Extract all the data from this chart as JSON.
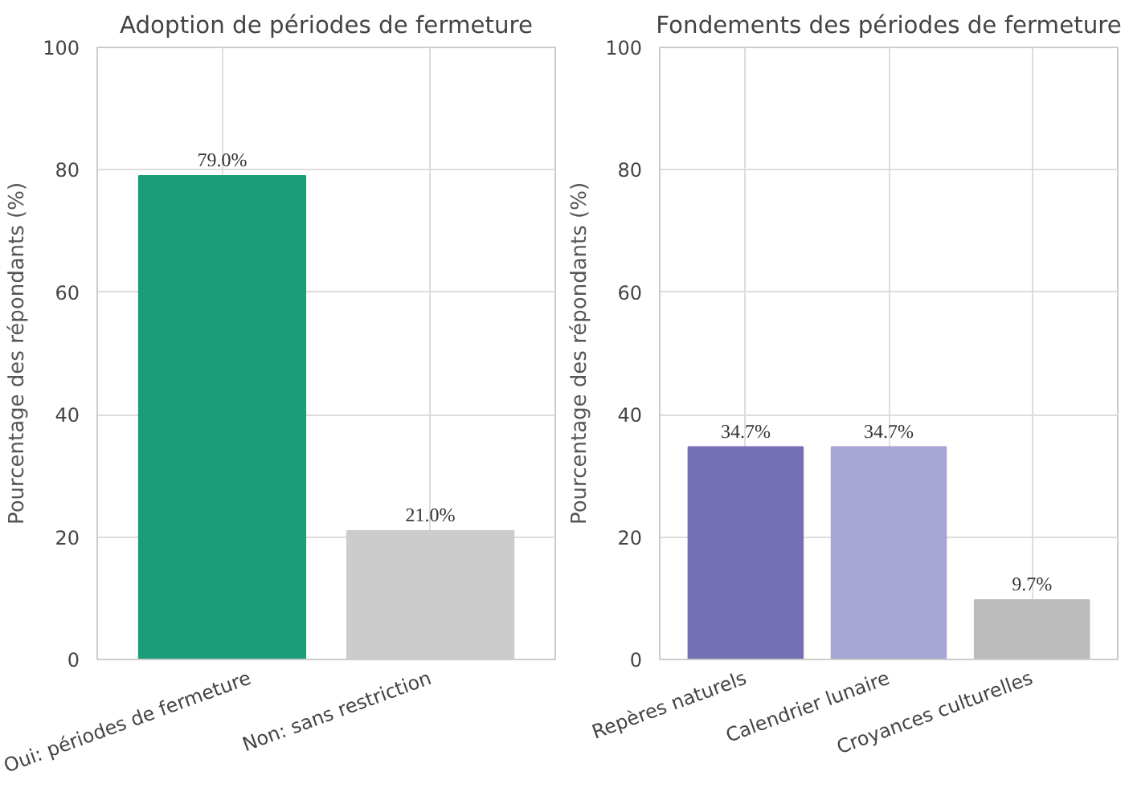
{
  "chart_data": [
    {
      "type": "bar",
      "title": "Adoption de périodes de fermeture",
      "ylabel": "Pourcentage des répondants (%)",
      "categories": [
        "Oui: périodes de fermeture",
        "Non: sans restriction"
      ],
      "values": [
        79.0,
        21.0
      ],
      "colors": [
        "#1b9e77",
        "#cccccc"
      ],
      "value_labels": [
        "79.0%",
        "21.0%"
      ],
      "ylim": [
        0,
        100
      ],
      "yticks": [
        0,
        20,
        40,
        60,
        80,
        100
      ],
      "grid": true
    },
    {
      "type": "bar",
      "title": "Fondements des périodes de fermeture",
      "ylabel": "Pourcentage des répondants (%)",
      "categories": [
        "Repères naturels",
        "Calendrier lunaire",
        "Croyances culturelles"
      ],
      "values": [
        34.7,
        34.7,
        9.7
      ],
      "colors": [
        "#7570b3",
        "#a6a5d3",
        "#bbbbbb"
      ],
      "value_labels": [
        "34.7%",
        "34.7%",
        "9.7%"
      ],
      "ylim": [
        0,
        100
      ],
      "yticks": [
        0,
        20,
        40,
        60,
        80,
        100
      ],
      "grid": true
    }
  ]
}
